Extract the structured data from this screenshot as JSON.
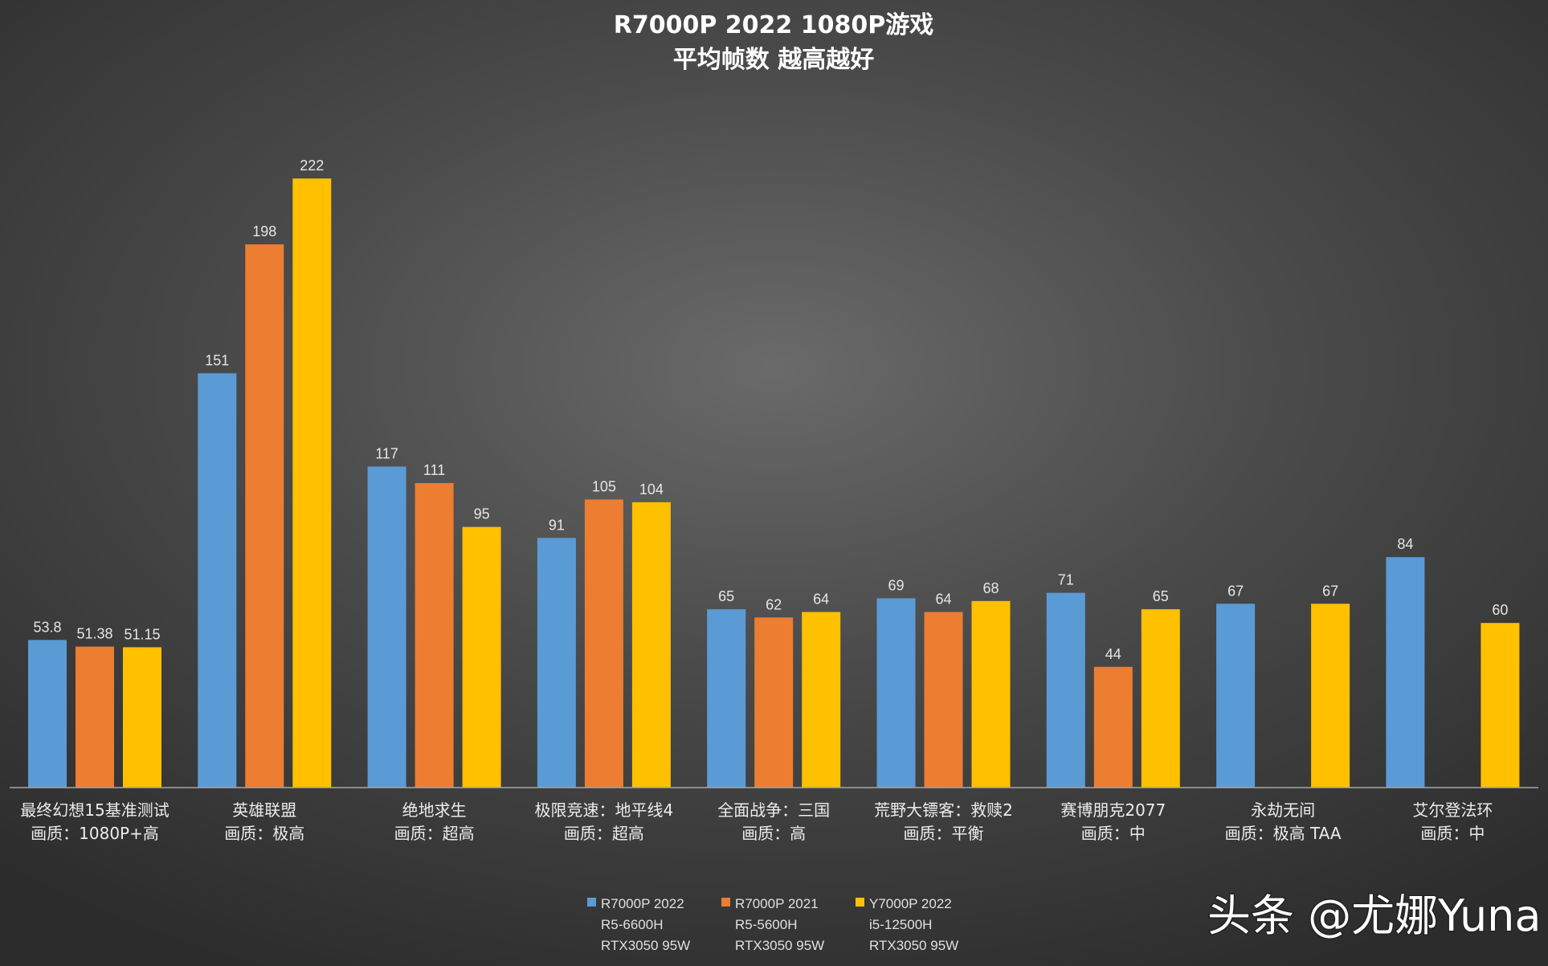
{
  "chart_data": {
    "type": "bar",
    "title": [
      "R7000P  2022  1080P游戏",
      "平均帧数 越高越好"
    ],
    "categories": [
      [
        "最终幻想15基准测试",
        "画质：1080P+高"
      ],
      [
        "英雄联盟",
        "画质：极高"
      ],
      [
        "绝地求生",
        "画质：超高"
      ],
      [
        "极限竞速：地平线4",
        "画质：超高"
      ],
      [
        "全面战争：三国",
        "画质：高"
      ],
      [
        "荒野大镖客：救赎2",
        "画质：平衡"
      ],
      [
        "赛博朋克2077",
        "画质：中"
      ],
      [
        "永劫无间",
        "画质：极高 TAA"
      ],
      [
        "艾尔登法环",
        "画质：中"
      ]
    ],
    "series": [
      {
        "name": [
          "R7000P 2022",
          "R5-6600H",
          "RTX3050 95W"
        ],
        "color": "#5b9bd5",
        "values": [
          53.8,
          151,
          117,
          91,
          65,
          69,
          71,
          67,
          84
        ]
      },
      {
        "name": [
          "R7000P 2021",
          "R5-5600H",
          "RTX3050 95W"
        ],
        "color": "#ed7d31",
        "values": [
          51.38,
          198,
          111,
          105,
          62,
          64,
          44,
          null,
          null
        ]
      },
      {
        "name": [
          "Y7000P 2022",
          "i5-12500H",
          "RTX3050 95W"
        ],
        "color": "#ffc000",
        "values": [
          51.15,
          222,
          95,
          104,
          64,
          68,
          65,
          67,
          60
        ]
      }
    ],
    "ylim": [
      0,
      250
    ],
    "grid": false,
    "legend_placement": "bottom"
  },
  "watermark": "头条 @尤娜Yuna"
}
